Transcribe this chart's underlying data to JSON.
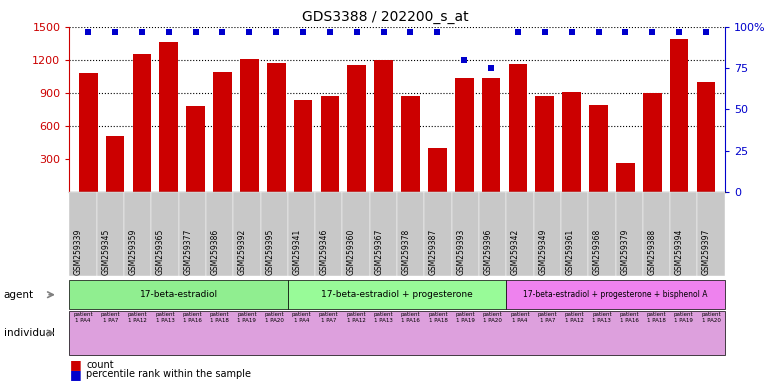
{
  "title": "GDS3388 / 202200_s_at",
  "samples": [
    "GSM259339",
    "GSM259345",
    "GSM259359",
    "GSM259365",
    "GSM259377",
    "GSM259386",
    "GSM259392",
    "GSM259395",
    "GSM259341",
    "GSM259346",
    "GSM259360",
    "GSM259367",
    "GSM259378",
    "GSM259387",
    "GSM259393",
    "GSM259396",
    "GSM259342",
    "GSM259349",
    "GSM259361",
    "GSM259368",
    "GSM259379",
    "GSM259388",
    "GSM259394",
    "GSM259397"
  ],
  "counts": [
    1080,
    510,
    1250,
    1360,
    780,
    1090,
    1210,
    1170,
    840,
    870,
    1150,
    1200,
    870,
    400,
    1040,
    1040,
    1160,
    870,
    910,
    790,
    260,
    900,
    1390,
    1000
  ],
  "percentiles": [
    97,
    97,
    97,
    97,
    97,
    97,
    97,
    97,
    97,
    97,
    97,
    97,
    97,
    97,
    80,
    75,
    97,
    97,
    97,
    97,
    97,
    97,
    97,
    97
  ],
  "groups": [
    {
      "label": "17-beta-estradiol",
      "start": 0,
      "end": 7,
      "color": "#90EE90"
    },
    {
      "label": "17-beta-estradiol + progesterone",
      "start": 8,
      "end": 15,
      "color": "#98FB98"
    },
    {
      "label": "17-beta-estradiol + progesterone + bisphenol A",
      "start": 16,
      "end": 23,
      "color": "#EE82EE"
    }
  ],
  "bar_color": "#CC0000",
  "dot_color": "#0000CC",
  "ylim_left": [
    0,
    1500
  ],
  "ylim_right": [
    0,
    100
  ],
  "yticks_left": [
    300,
    600,
    900,
    1200,
    1500
  ],
  "yticks_right": [
    0,
    25,
    50,
    75,
    100
  ],
  "grid_levels": [
    600,
    900,
    1200,
    1500
  ],
  "background_color": "#ffffff",
  "ind_bg_color": "#DDA0DD",
  "xlabel_bg_color": "#D3D3D3"
}
